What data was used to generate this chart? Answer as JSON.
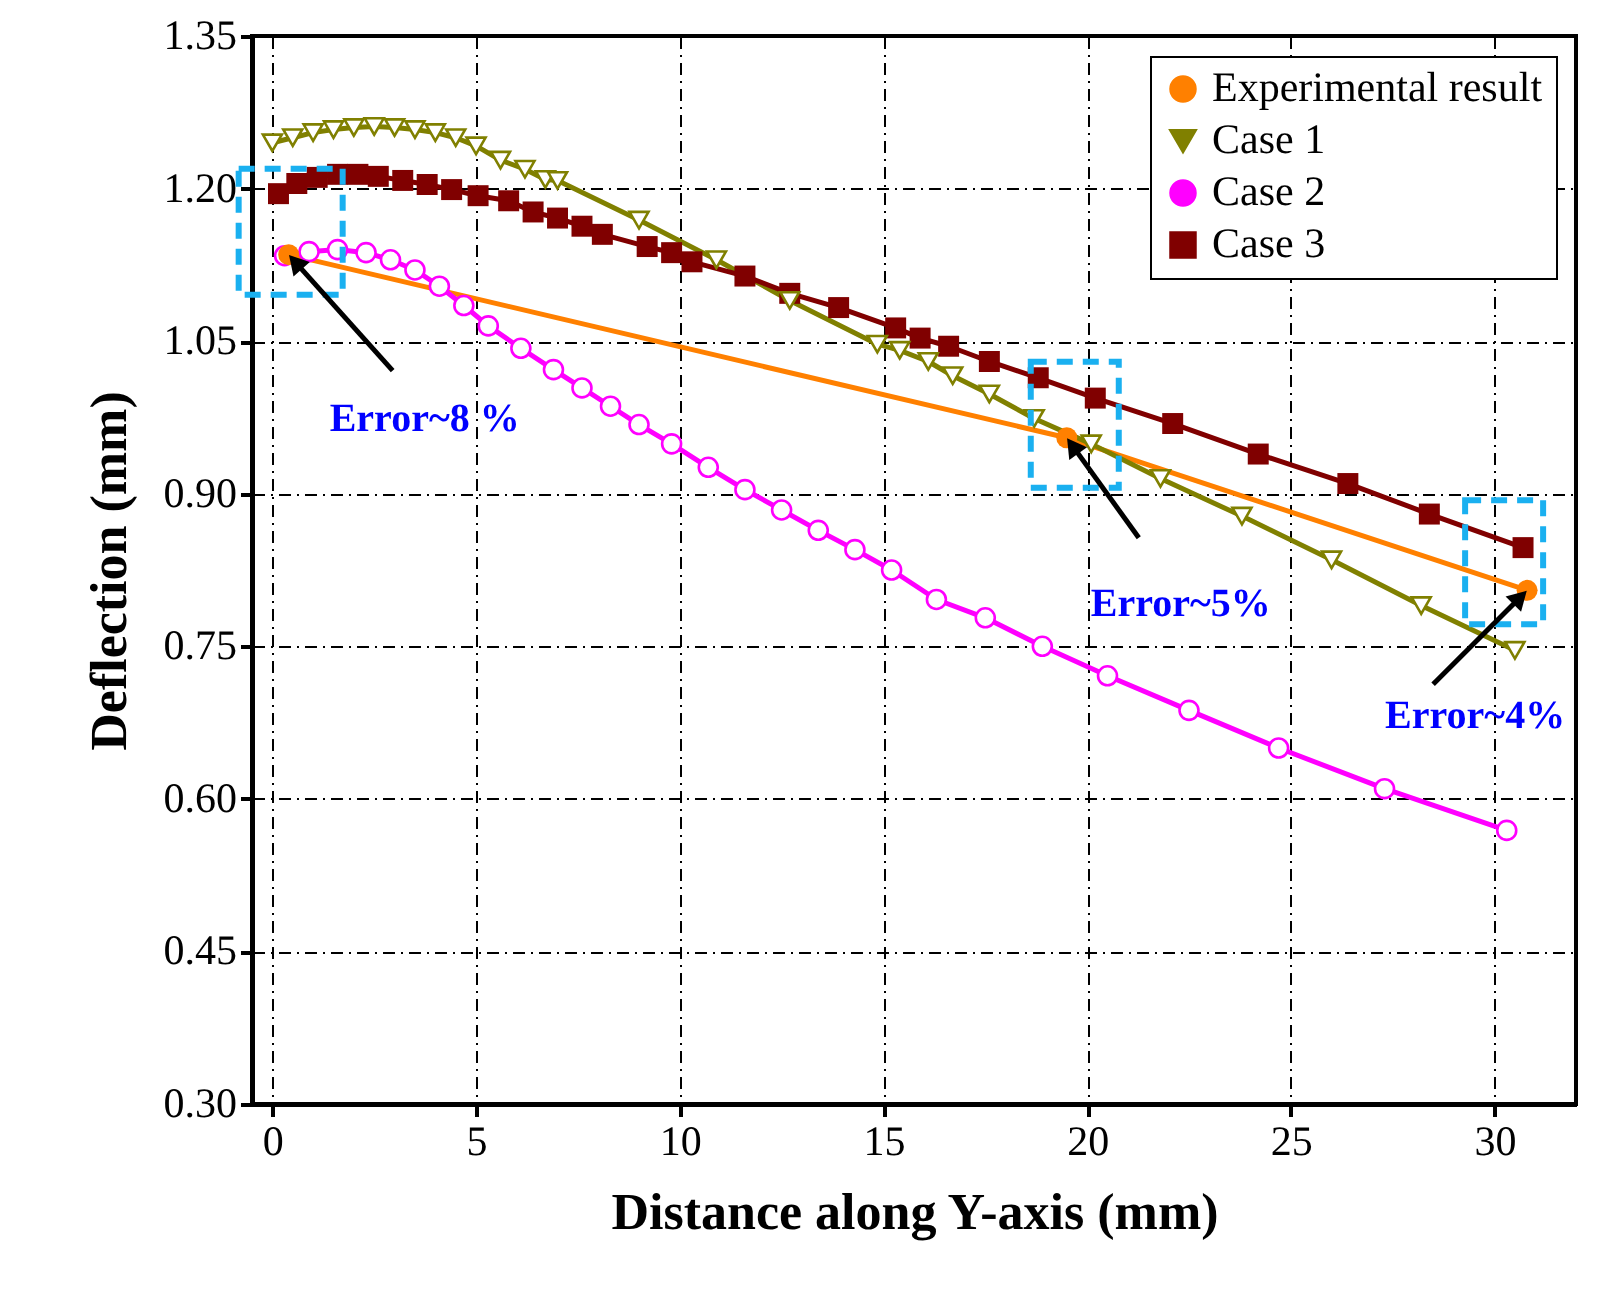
{
  "chart_data": {
    "type": "line",
    "xlabel": "Distance along Y-axis (mm)",
    "ylabel": "Deflection (mm)",
    "xlim": [
      -0.5,
      32
    ],
    "xticks": [
      0,
      5,
      10,
      15,
      20,
      25,
      30
    ],
    "ylim": [
      0.3,
      1.35
    ],
    "yticks": [
      {
        "value": 0.3,
        "label": "0.30"
      },
      {
        "value": 0.45,
        "label": "0.45"
      },
      {
        "value": 0.6,
        "label": "0.60"
      },
      {
        "value": 0.75,
        "label": "0.75"
      },
      {
        "value": 0.9,
        "label": "0.90"
      },
      {
        "value": 1.05,
        "label": "1.05"
      },
      {
        "value": 1.2,
        "label": "1.20"
      },
      {
        "value": 1.35,
        "label": "1.35"
      }
    ],
    "grid": true,
    "legend": "top right",
    "line_style": "solid",
    "series": [
      {
        "name": "Experimental result",
        "color": "#ff8000",
        "marker": "circle",
        "x": [
          0.4,
          19.5,
          30.8
        ],
        "values": [
          1.135,
          0.955,
          0.805
        ]
      },
      {
        "name": "Case 1",
        "color": "#808000",
        "marker": "triangle",
        "x": [
          0,
          0.5,
          1,
          1.5,
          2,
          2.5,
          3,
          3.5,
          4,
          4.5,
          5,
          5.6,
          6.2,
          6.7,
          7.0,
          9.0,
          10.9,
          12.7,
          14.85,
          15.4,
          16.1,
          16.7,
          17.6,
          18.7,
          20.1,
          21.8,
          23.8,
          26.0,
          28.2,
          30.5
        ],
        "values": [
          1.245,
          1.25,
          1.255,
          1.258,
          1.26,
          1.261,
          1.26,
          1.258,
          1.255,
          1.25,
          1.242,
          1.228,
          1.219,
          1.209,
          1.208,
          1.169,
          1.13,
          1.09,
          1.047,
          1.041,
          1.03,
          1.016,
          0.998,
          0.974,
          0.949,
          0.915,
          0.878,
          0.835,
          0.79,
          0.746
        ]
      },
      {
        "name": "Case 2",
        "color": "#ff00ff",
        "marker": "circle",
        "x": [
          0.3,
          0.9,
          1.6,
          2.3,
          2.9,
          3.5,
          4.1,
          4.7,
          5.3,
          6.1,
          6.9,
          7.6,
          8.3,
          9.0,
          9.8,
          10.7,
          11.6,
          12.5,
          13.4,
          14.3,
          15.2,
          16.3,
          17.5,
          18.9,
          20.5,
          22.5,
          24.7,
          27.3,
          30.3
        ],
        "values": [
          1.134,
          1.138,
          1.14,
          1.137,
          1.13,
          1.12,
          1.104,
          1.085,
          1.065,
          1.043,
          1.022,
          1.004,
          0.986,
          0.968,
          0.949,
          0.926,
          0.904,
          0.884,
          0.864,
          0.845,
          0.825,
          0.796,
          0.778,
          0.75,
          0.721,
          0.687,
          0.65,
          0.61,
          0.569
        ]
      },
      {
        "name": "Case 3",
        "color": "#800000",
        "marker": "square",
        "x": [
          0.15,
          0.6,
          1.1,
          1.6,
          2.1,
          2.6,
          3.2,
          3.8,
          4.4,
          5.05,
          5.8,
          6.4,
          7.0,
          7.6,
          8.1,
          9.2,
          9.8,
          10.3,
          11.6,
          12.7,
          13.9,
          15.3,
          15.9,
          16.6,
          17.6,
          18.8,
          20.2,
          22.1,
          24.2,
          26.4,
          28.4,
          30.7
        ],
        "values": [
          1.195,
          1.205,
          1.211,
          1.214,
          1.214,
          1.212,
          1.208,
          1.204,
          1.199,
          1.193,
          1.188,
          1.177,
          1.171,
          1.163,
          1.155,
          1.143,
          1.137,
          1.128,
          1.114,
          1.097,
          1.083,
          1.063,
          1.053,
          1.045,
          1.03,
          1.014,
          0.994,
          0.969,
          0.939,
          0.91,
          0.88,
          0.847
        ]
      }
    ],
    "annotations": [
      {
        "text": "Error~8 %",
        "x": 0.4,
        "y": 1.135
      },
      {
        "text": "Error~5%",
        "x": 19.5,
        "y": 0.955
      },
      {
        "text": "Error~4%",
        "x": 30.8,
        "y": 0.805
      }
    ]
  }
}
